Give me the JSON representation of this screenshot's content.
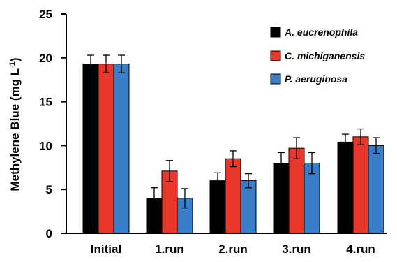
{
  "chart_data": {
    "type": "bar",
    "title": "",
    "xlabel": "",
    "ylabel": "Methylene Blue (mg L",
    "ylabel_sup": "-1",
    "ylabel_close": ")",
    "ylim": [
      0,
      25
    ],
    "yticks": [
      0,
      5,
      10,
      15,
      20,
      25
    ],
    "ytick_labels": [
      "0",
      "5",
      "10",
      "15",
      "20",
      "25"
    ],
    "categories": [
      "Initial",
      "1.run",
      "2.run",
      "3.run",
      "4.run"
    ],
    "legend_position": "top-right",
    "grid": false,
    "series": [
      {
        "name": "A. eucrenophila",
        "color": "#000000",
        "values": [
          19.3,
          4.0,
          6.0,
          8.0,
          10.4
        ],
        "errors": [
          1.0,
          1.2,
          0.9,
          1.2,
          0.9
        ]
      },
      {
        "name": "C. michiganensis",
        "color": "#e8372b",
        "values": [
          19.3,
          7.1,
          8.5,
          9.7,
          11.0
        ],
        "errors": [
          1.0,
          1.2,
          0.9,
          1.2,
          0.9
        ]
      },
      {
        "name": "P. aeruginosa",
        "color": "#3a7ec9",
        "values": [
          19.3,
          4.0,
          6.0,
          8.0,
          10.0
        ],
        "errors": [
          1.0,
          1.1,
          0.8,
          1.2,
          0.9
        ]
      }
    ]
  }
}
